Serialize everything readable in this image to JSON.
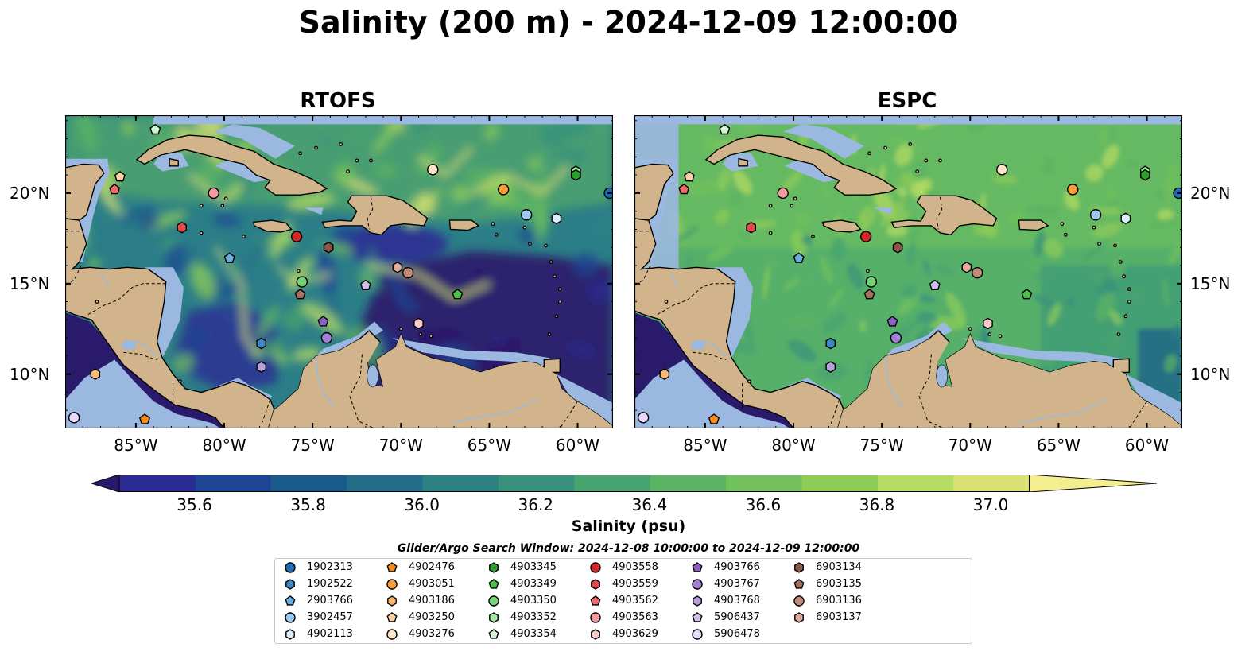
{
  "title": "Salinity (200 m) - 2024-12-09 12:00:00",
  "panels": [
    {
      "name": "RTOFS",
      "style": "rtofs"
    },
    {
      "name": "ESPC",
      "style": "espc"
    }
  ],
  "x_ticks": [
    "85°W",
    "80°W",
    "75°W",
    "70°W",
    "65°W",
    "60°W"
  ],
  "y_ticks": [
    "20°N",
    "15°N",
    "10°N"
  ],
  "colorbar": {
    "title": "Salinity (psu)",
    "tick_labels": [
      "35.6",
      "35.8",
      "36.0",
      "36.2",
      "36.4",
      "36.6",
      "36.8",
      "37.0"
    ],
    "colors": [
      "#2a1a6b",
      "#2b2b93",
      "#1e4593",
      "#1a5b8c",
      "#226e88",
      "#2b8184",
      "#37917c",
      "#47a36f",
      "#5bb363",
      "#72c15c",
      "#8ecc58",
      "#b6db62",
      "#dbe174",
      "#f4ee8e"
    ],
    "extend": "both"
  },
  "land_color": "#d2b48c",
  "shelf_color": "#9bb8e0",
  "legend": {
    "title": "Glider/Argo Search Window: 2024-12-08 10:00:00 to 2024-12-09 12:00:00",
    "entries": [
      {
        "id": "1902313",
        "marker": "circle",
        "color": "#1f6bb4"
      },
      {
        "id": "1902522",
        "marker": "hexagon",
        "color": "#3d86c6"
      },
      {
        "id": "2903766",
        "marker": "pentagon",
        "color": "#6aaee0"
      },
      {
        "id": "3902457",
        "marker": "circle",
        "color": "#9cc9ee"
      },
      {
        "id": "4902113",
        "marker": "hexagon",
        "color": "#dbeeff"
      },
      {
        "id": "4902476",
        "marker": "pentagon",
        "color": "#f58a1c"
      },
      {
        "id": "4903051",
        "marker": "circle",
        "color": "#fb9d3b"
      },
      {
        "id": "4903186",
        "marker": "hexagon",
        "color": "#fdb873"
      },
      {
        "id": "4903250",
        "marker": "pentagon",
        "color": "#fdd3a4"
      },
      {
        "id": "4903276",
        "marker": "circle",
        "color": "#fde4c9"
      },
      {
        "id": "4903345",
        "marker": "hexagon",
        "color": "#2ca02c"
      },
      {
        "id": "4903349",
        "marker": "pentagon",
        "color": "#4cc24c"
      },
      {
        "id": "4903350",
        "marker": "circle",
        "color": "#74d374"
      },
      {
        "id": "4903352",
        "marker": "hexagon",
        "color": "#a1e6a1"
      },
      {
        "id": "4903354",
        "marker": "pentagon",
        "color": "#d1f5d1"
      },
      {
        "id": "4903558",
        "marker": "circle",
        "color": "#d62728"
      },
      {
        "id": "4903559",
        "marker": "hexagon",
        "color": "#e34949"
      },
      {
        "id": "4903562",
        "marker": "pentagon",
        "color": "#ef6a6e"
      },
      {
        "id": "4903563",
        "marker": "circle",
        "color": "#f59b9f"
      },
      {
        "id": "4903629",
        "marker": "hexagon",
        "color": "#fcc8ca"
      },
      {
        "id": "4903766",
        "marker": "pentagon",
        "color": "#8c5fc2"
      },
      {
        "id": "4903767",
        "marker": "circle",
        "color": "#a17fd3"
      },
      {
        "id": "4903768",
        "marker": "hexagon",
        "color": "#b9a0e0"
      },
      {
        "id": "5906437",
        "marker": "pentagon",
        "color": "#d1bff0"
      },
      {
        "id": "5906478",
        "marker": "circle",
        "color": "#e7d9fb"
      },
      {
        "id": "6903134",
        "marker": "hexagon",
        "color": "#8c5547"
      },
      {
        "id": "6903135",
        "marker": "pentagon",
        "color": "#a8705f"
      },
      {
        "id": "6903136",
        "marker": "circle",
        "color": "#c48a79"
      },
      {
        "id": "6903137",
        "marker": "hexagon",
        "color": "#e2ab9a"
      }
    ]
  },
  "float_positions": [
    {
      "id": "1902313",
      "lon": -58.2,
      "lat": 20.0
    },
    {
      "id": "4903352",
      "lon": -60.1,
      "lat": 21.2
    },
    {
      "id": "4903345",
      "lon": -60.1,
      "lat": 21.0
    },
    {
      "id": "4902113",
      "lon": -61.2,
      "lat": 18.6
    },
    {
      "id": "3902457",
      "lon": -62.9,
      "lat": 18.8
    },
    {
      "id": "4903051",
      "lon": -64.2,
      "lat": 20.2
    },
    {
      "id": "4903276",
      "lon": -68.2,
      "lat": 21.3
    },
    {
      "id": "4903349",
      "lon": -66.8,
      "lat": 14.4
    },
    {
      "id": "6903136",
      "lon": -69.6,
      "lat": 15.6
    },
    {
      "id": "6903137",
      "lon": -70.2,
      "lat": 15.9
    },
    {
      "id": "5906437",
      "lon": -72.0,
      "lat": 14.9
    },
    {
      "id": "4903629",
      "lon": -69.0,
      "lat": 12.8
    },
    {
      "id": "6903134",
      "lon": -74.1,
      "lat": 17.0
    },
    {
      "id": "4903558",
      "lon": -75.9,
      "lat": 17.6
    },
    {
      "id": "4903350",
      "lon": -75.6,
      "lat": 15.1
    },
    {
      "id": "6903135",
      "lon": -75.7,
      "lat": 14.4
    },
    {
      "id": "4903766",
      "lon": -74.4,
      "lat": 12.9
    },
    {
      "id": "4903767",
      "lon": -74.2,
      "lat": 12.0
    },
    {
      "id": "1902522",
      "lon": -77.9,
      "lat": 11.7
    },
    {
      "id": "4903768",
      "lon": -77.9,
      "lat": 10.4
    },
    {
      "id": "2903766",
      "lon": -79.7,
      "lat": 16.4
    },
    {
      "id": "4903563",
      "lon": -80.6,
      "lat": 20.0
    },
    {
      "id": "4903559",
      "lon": -82.4,
      "lat": 18.1
    },
    {
      "id": "4903562",
      "lon": -86.2,
      "lat": 20.2
    },
    {
      "id": "4903250",
      "lon": -85.9,
      "lat": 20.9
    },
    {
      "id": "4903354",
      "lon": -83.9,
      "lat": 23.5
    },
    {
      "id": "4903186",
      "lon": -87.3,
      "lat": 10.0
    },
    {
      "id": "5906478",
      "lon": -88.5,
      "lat": 7.6
    },
    {
      "id": "4902476",
      "lon": -84.5,
      "lat": 7.5
    }
  ]
}
